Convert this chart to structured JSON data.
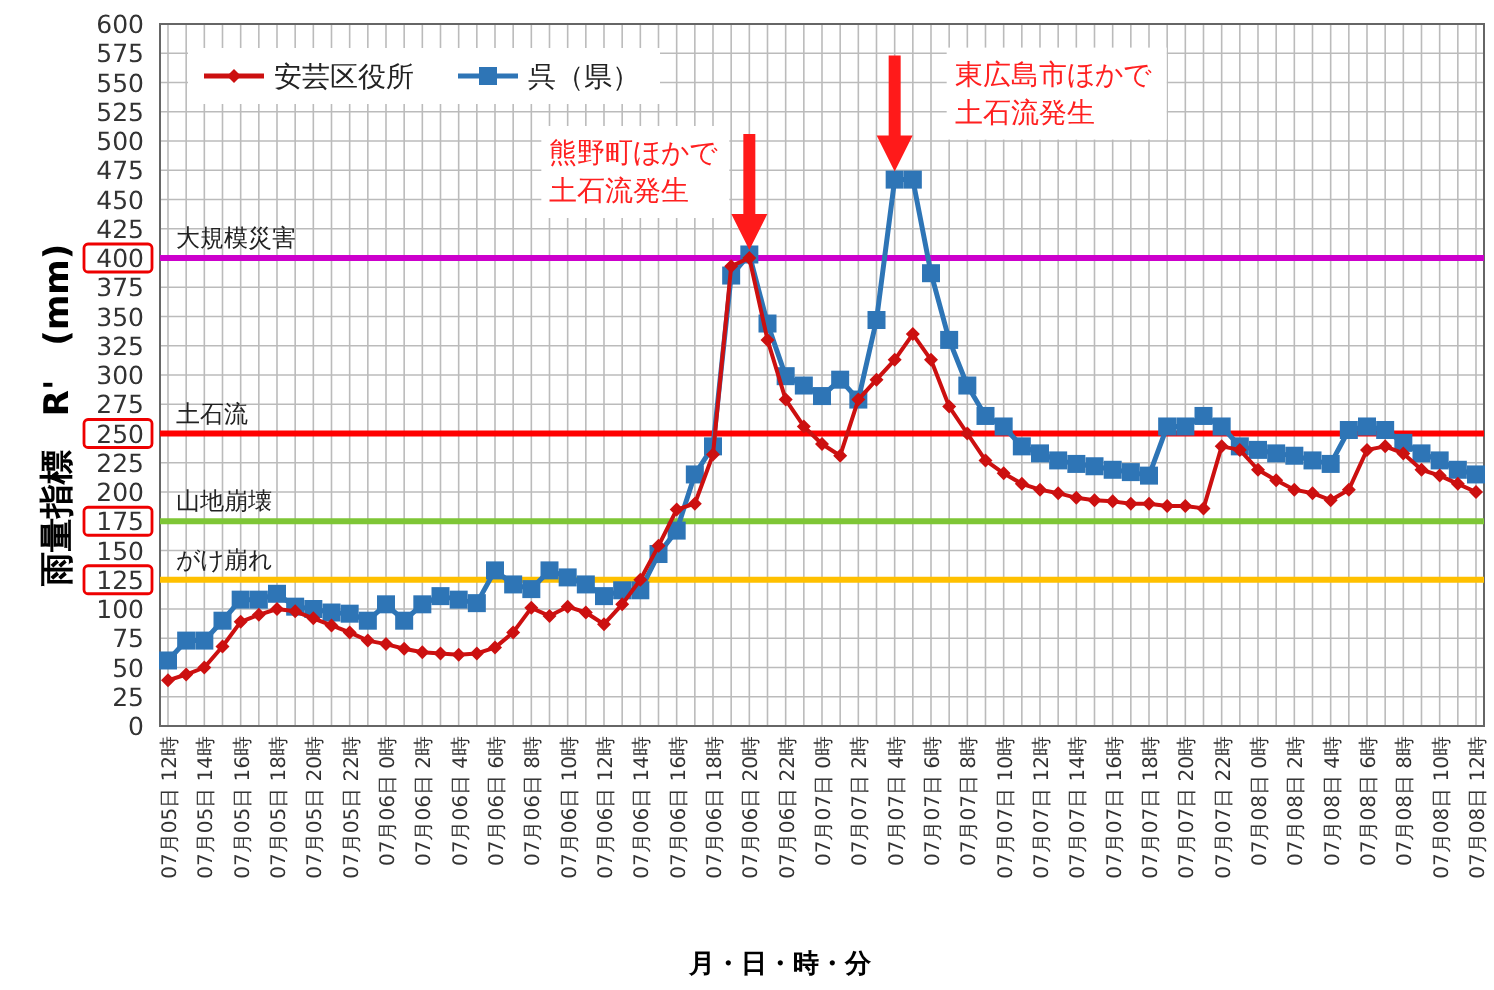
{
  "chart_data": {
    "type": "line",
    "xlabel": "月・日・時・分",
    "ylabel": "雨量指標　R'　(mm)",
    "categories": [
      "07月05日 12時",
      null,
      "07月05日 14時",
      null,
      "07月05日 16時",
      null,
      "07月05日 18時",
      null,
      "07月05日 20時",
      null,
      "07月05日 22時",
      null,
      "07月06日 0時",
      null,
      "07月06日 2時",
      null,
      "07月06日 4時",
      null,
      "07月06日 6時",
      null,
      "07月06日 8時",
      null,
      "07月06日 10時",
      null,
      "07月06日 12時",
      null,
      "07月06日 14時",
      null,
      "07月06日 16時",
      null,
      "07月06日 18時",
      null,
      "07月06日 20時",
      null,
      "07月06日 22時",
      null,
      "07月07日 0時",
      null,
      "07月07日 2時",
      null,
      "07月07日 4時",
      null,
      "07月07日 6時",
      null,
      "07月07日 8時",
      null,
      "07月07日 10時",
      null,
      "07月07日 12時",
      null,
      "07月07日 14時",
      null,
      "07月07日 16時",
      null,
      "07月07日 18時",
      null,
      "07月07日 20時",
      null,
      "07月07日 22時",
      null,
      "07月08日 0時",
      null,
      "07月08日 2時",
      null,
      "07月08日 4時",
      null,
      "07月08日 6時",
      null,
      "07月08日 8時",
      null,
      "07月08日 10時",
      null,
      "07月08日 12時"
    ],
    "series": [
      {
        "name": "安芸区役所",
        "color": "#cc1010",
        "marker": "diamond",
        "values": [
          39,
          44,
          50,
          68,
          89,
          95,
          100,
          98,
          92,
          86,
          80,
          73,
          70,
          66,
          63,
          62,
          61,
          62,
          67,
          80,
          101,
          94,
          102,
          97,
          87,
          104,
          125,
          154,
          185,
          190,
          232,
          393,
          400,
          330,
          279,
          256,
          241,
          231,
          279,
          296,
          313,
          335,
          313,
          273,
          250,
          227,
          216,
          207,
          202,
          199,
          195,
          193,
          192,
          190,
          190,
          188,
          188,
          186,
          239,
          236,
          219,
          210,
          202,
          199,
          193,
          202,
          236,
          239,
          233,
          219,
          214,
          207,
          200
        ]
      },
      {
        "name": "呉（県）",
        "color": "#2e75b6",
        "marker": "square",
        "values": [
          56,
          73,
          73,
          90,
          108,
          108,
          113,
          102,
          100,
          97,
          96,
          90,
          104,
          90,
          104,
          111,
          108,
          105,
          133,
          121,
          117,
          133,
          127,
          121,
          111,
          116,
          116,
          147,
          167,
          215,
          239,
          385,
          403,
          344,
          299,
          291,
          282,
          296,
          279,
          347,
          467,
          467,
          387,
          330,
          291,
          265,
          256,
          239,
          233,
          227,
          224,
          222,
          219,
          217,
          214,
          256,
          256,
          265,
          256,
          239,
          236,
          233,
          231,
          227,
          224,
          253,
          256,
          253,
          242,
          233,
          227,
          219,
          215
        ]
      }
    ],
    "ylim": [
      0,
      600
    ],
    "yticks": [
      0,
      25,
      50,
      75,
      100,
      125,
      150,
      175,
      200,
      225,
      250,
      275,
      300,
      325,
      350,
      375,
      400,
      425,
      450,
      475,
      500,
      525,
      550,
      575,
      600
    ],
    "grid": true,
    "legend": "top left",
    "ref_lines": [
      {
        "axis": "y",
        "value": 400,
        "label": "大規模災害",
        "color": "#cc00cc"
      },
      {
        "axis": "y",
        "value": 250,
        "label": "土石流",
        "color": "#ff0000"
      },
      {
        "axis": "y",
        "value": 175,
        "label": "山地崩壊",
        "color": "#7ec636"
      },
      {
        "axis": "y",
        "value": 125,
        "label": "がけ崩れ",
        "color": "#ffc000"
      }
    ],
    "annotations": [
      {
        "text": "熊野町ほかで土石流発生",
        "x": "07月06日 20時",
        "y": 400
      },
      {
        "text": "東広島市ほかで土石流発生",
        "x": "07月07日 4時",
        "y": 467
      }
    ]
  }
}
